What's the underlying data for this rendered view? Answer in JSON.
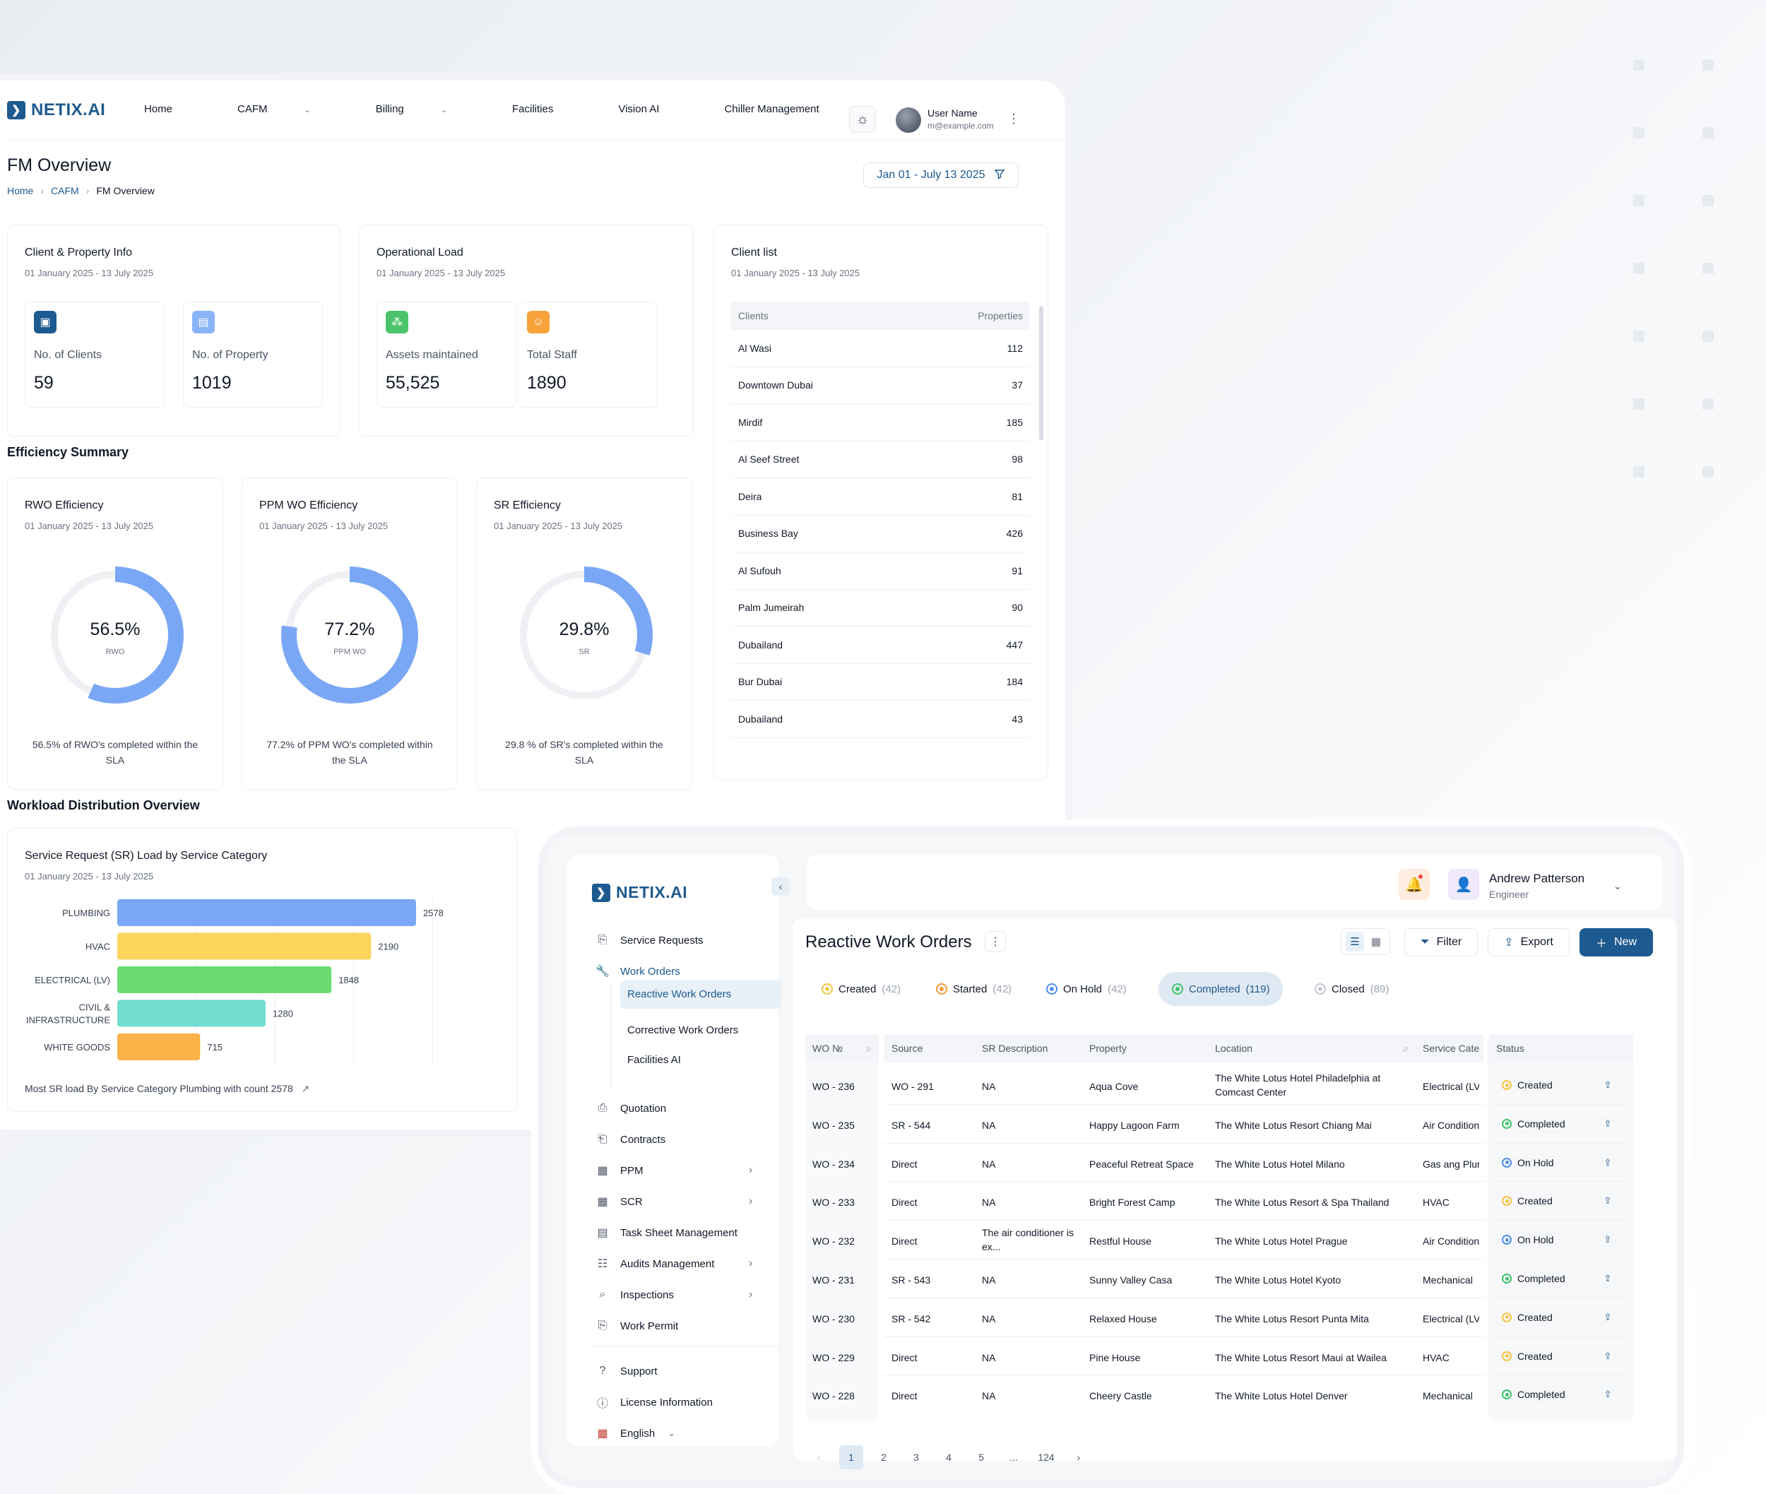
{
  "brand": {
    "name": "NETIX.AI"
  },
  "colors": {
    "accent": "#1d5a8f",
    "donut": "#7aa7f5",
    "track": "#eef0f4"
  },
  "fm": {
    "nav": {
      "items": [
        {
          "label": "Home",
          "has_menu": false
        },
        {
          "label": "CAFM",
          "has_menu": true
        },
        {
          "label": "Billing",
          "has_menu": true
        },
        {
          "label": "Facilities",
          "has_menu": false
        },
        {
          "label": "Vision AI",
          "has_menu": false
        },
        {
          "label": "Chiller Management",
          "has_menu": true
        }
      ],
      "user_name": "User Name",
      "user_email": "m@example.com"
    },
    "page_title": "FM Overview",
    "breadcrumb": [
      "Home",
      "CAFM",
      "FM Overview"
    ],
    "date_filter": "Jan 01 - July 13 2025",
    "client_property": {
      "title": "Client & Property Info",
      "range": "01 January 2025 - 13 July 2025",
      "stats": [
        {
          "label": "No. of Clients",
          "value": "59",
          "icon": "contact-card-icon",
          "color": "#1d5a8f"
        },
        {
          "label": "No. of Property",
          "value": "1019",
          "icon": "building-icon",
          "color": "#8ab4f8"
        }
      ]
    },
    "operational": {
      "title": "Operational Load",
      "range": "01 January 2025 - 13 July 2025",
      "stats": [
        {
          "label": "Assets  maintained",
          "value": "55,525",
          "icon": "assets-icon",
          "color": "#4cc36b"
        },
        {
          "label": "Total Staff",
          "value": "1890",
          "icon": "staff-icon",
          "color": "#f8a23a"
        }
      ]
    },
    "client_list": {
      "title": "Client list",
      "range": "01 January 2025 - 13 July 2025",
      "columns": [
        "Clients",
        "Properties"
      ],
      "rows": [
        [
          "Al Wasi",
          "112"
        ],
        [
          "Downtown Dubai",
          "37"
        ],
        [
          "Mirdif",
          "185"
        ],
        [
          "Al Seef Street",
          "98"
        ],
        [
          "Deira",
          "81"
        ],
        [
          "Business Bay",
          "426"
        ],
        [
          "Al Sufouh",
          "91"
        ],
        [
          "Palm Jumeirah",
          "90"
        ],
        [
          "Dubailand",
          "447"
        ],
        [
          "Bur Dubai",
          "184"
        ],
        [
          "Dubailand",
          "43"
        ]
      ]
    },
    "efficiency_title": "Efficiency Summary",
    "efficiency": [
      {
        "title": "RWO Efficiency",
        "range": "01 January 2025 - 13 July 2025",
        "percent": 56.5,
        "percent_label": "56.5%",
        "caption": "RWO",
        "note": "56.5% of RWO's completed within the SLA"
      },
      {
        "title": "PPM WO Efficiency",
        "range": "01 January 2025 - 13 July 2025",
        "percent": 77.2,
        "percent_label": "77.2%",
        "caption": "PPM WO",
        "note": "77.2% of PPM WO's completed within the SLA"
      },
      {
        "title": "SR Efficiency",
        "range": "01 January 2025 - 13 July 2025",
        "percent": 29.8,
        "percent_label": "29.8%",
        "caption": "SR",
        "note": "29.8 % of SR's completed within the SLA"
      }
    ],
    "workload_title": "Workload Distribution Overview",
    "sr_load": {
      "title": "Service Request (SR) Load by Service Category",
      "range": "01 January 2025 - 13 July 2025",
      "footer": "Most SR load By Service Category Plumbing with count 2578"
    }
  },
  "chart_data": {
    "type": "bar",
    "orientation": "horizontal",
    "title": "Service Request (SR) Load by Service Category",
    "categories": [
      "PLUMBING",
      "HVAC",
      "ELECTRICAL (LV)",
      "CIVIL & INFRASTRUCTURE",
      "WHITE GOODS"
    ],
    "values": [
      2578,
      2190,
      1848,
      1280,
      715
    ],
    "colors": [
      "#7aa7f5",
      "#fdd45c",
      "#6cdc72",
      "#73ddd0",
      "#fbb248"
    ],
    "xlim": [
      0,
      3200
    ],
    "grid": true
  },
  "wo": {
    "sidebar": {
      "items": [
        {
          "label": "Service Requests",
          "icon": "service-request-icon",
          "arrow": false
        },
        {
          "label": "Work Orders",
          "icon": "wrench-icon",
          "arrow": false,
          "active": true
        },
        {
          "label": "Quotation",
          "icon": "quotation-icon",
          "arrow": false
        },
        {
          "label": "Contracts",
          "icon": "contract-icon",
          "arrow": false
        },
        {
          "label": "PPM",
          "icon": "calendar-icon",
          "arrow": true
        },
        {
          "label": "SCR",
          "icon": "calendar-icon",
          "arrow": true
        },
        {
          "label": "Task Sheet Management",
          "icon": "task-sheet-icon",
          "arrow": false
        },
        {
          "label": "Audits Management",
          "icon": "audit-icon",
          "arrow": true
        },
        {
          "label": "Inspections",
          "icon": "inspection-icon",
          "arrow": true
        },
        {
          "label": "Work Permit",
          "icon": "permit-icon",
          "arrow": false
        }
      ],
      "submenu": [
        "Reactive Work Orders",
        "Corrective Work Orders",
        "Facilities AI"
      ],
      "bottom": [
        {
          "label": "Support",
          "icon": "support-icon"
        },
        {
          "label": "License Information",
          "icon": "info-icon"
        },
        {
          "label": "English",
          "icon": "uk-flag-icon"
        }
      ]
    },
    "user": {
      "name": "Andrew Patterson",
      "role": "Engineer"
    },
    "title": "Reactive Work Orders",
    "toolbar": {
      "filter": "Filter",
      "export": "Export",
      "new": "New"
    },
    "status_tabs": [
      {
        "label": "Created",
        "count": "(42)",
        "color": "#f5c542",
        "active": false
      },
      {
        "label": "Started",
        "count": "(42)",
        "color": "#f39c32",
        "active": false
      },
      {
        "label": "On Hold",
        "count": "(42)",
        "color": "#4f8fe8",
        "active": false
      },
      {
        "label": "Completed",
        "count": "(119)",
        "color": "#3cc26b",
        "active": true
      },
      {
        "label": "Closed",
        "count": "(89)",
        "color": "#c4c8cf",
        "active": false
      }
    ],
    "columns": [
      "WO №",
      "Source",
      "SR Description",
      "Property",
      "Location",
      "Service Cate",
      "Status"
    ],
    "rows": [
      {
        "wo": "WO - 236",
        "source": "WO - 291",
        "desc": "NA",
        "property": "Aqua Cove",
        "location": "The White Lotus Hotel Philadelphia at Comcast Center",
        "service": "Electrical (LV",
        "status": "Created"
      },
      {
        "wo": "WO - 235",
        "source": "SR - 544",
        "desc": "NA",
        "property": "Happy Lagoon Farm",
        "location": "The White Lotus Resort Chiang Mai",
        "service": "Air Condition",
        "status": "Completed"
      },
      {
        "wo": "WO - 234",
        "source": "Direct",
        "desc": "NA",
        "property": "Peaceful Retreat Space",
        "location": "The White Lotus Hotel Milano",
        "service": "Gas ang Plur",
        "status": "On Hold"
      },
      {
        "wo": "WO - 233",
        "source": "Direct",
        "desc": "NA",
        "property": "Bright Forest Camp",
        "location": "The White Lotus Resort & Spa Thailand",
        "service": "HVAC",
        "status": "Created"
      },
      {
        "wo": "WO - 232",
        "source": "Direct",
        "desc": "The air conditioner is ex...",
        "property": "Restful House",
        "location": "The White Lotus Hotel Prague",
        "service": "Air Condition",
        "status": "On Hold"
      },
      {
        "wo": "WO - 231",
        "source": "SR - 543",
        "desc": "NA",
        "property": "Sunny Valley Casa",
        "location": "The White Lotus Hotel Kyoto",
        "service": "Mechanical",
        "status": "Completed"
      },
      {
        "wo": "WO - 230",
        "source": "SR - 542",
        "desc": "NA",
        "property": "Relaxed House",
        "location": "The White Lotus Resort Punta Mita",
        "service": "Electrical (LV",
        "status": "Created"
      },
      {
        "wo": "WO - 229",
        "source": "Direct",
        "desc": "NA",
        "property": "Pine House",
        "location": "The White Lotus Resort Maui at Wailea",
        "service": "HVAC",
        "status": "Created"
      },
      {
        "wo": "WO - 228",
        "source": "Direct",
        "desc": "NA",
        "property": "Cheery Castle",
        "location": "The White Lotus Hotel Denver",
        "service": "Mechanical",
        "status": "Completed"
      }
    ],
    "status_colors": {
      "Created": "#f5c542",
      "Completed": "#3cc26b",
      "On Hold": "#4f8fe8"
    },
    "pagination": [
      "1",
      "2",
      "3",
      "4",
      "5",
      "...",
      "124"
    ],
    "current_page": "1"
  }
}
